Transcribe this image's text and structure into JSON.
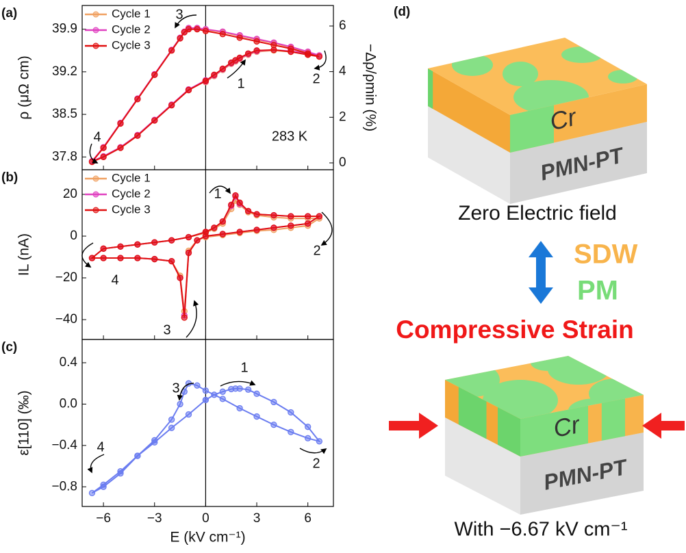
{
  "chart_data": [
    {
      "type": "line",
      "panel_label": "(a)",
      "ylabel": "ρ (μΩ cm)",
      "y2label": "−Δρ/ρmin (%)",
      "annotations": [
        "3",
        "1",
        "2",
        "4",
        "283 K"
      ],
      "legend": "upper left",
      "x": [
        0,
        0.5,
        1,
        1.5,
        1.75,
        2,
        2.5,
        3,
        4,
        5,
        6,
        6.67,
        6,
        5,
        4,
        3,
        2,
        1,
        0,
        -0.5,
        -1,
        -1.25,
        -1.5,
        -2,
        -3,
        -4,
        -5,
        -6,
        -6.67,
        -6,
        -5,
        -4,
        -3,
        -2,
        -1,
        0
      ],
      "series": [
        {
          "name": "Cycle 1",
          "color": "#f0a060",
          "values": [
            39.03,
            39.13,
            39.23,
            39.33,
            39.37,
            39.41,
            39.48,
            39.53,
            39.55,
            39.53,
            39.49,
            39.46,
            39.52,
            39.6,
            39.67,
            39.73,
            39.79,
            39.85,
            39.89,
            39.91,
            39.91,
            39.85,
            39.75,
            39.55,
            39.15,
            38.75,
            38.35,
            37.95,
            37.72,
            37.8,
            37.95,
            38.15,
            38.4,
            38.65,
            38.9,
            39.05
          ]
        },
        {
          "name": "Cycle 2",
          "color": "#e040c0",
          "values": [
            39.04,
            39.14,
            39.24,
            39.34,
            39.38,
            39.42,
            39.49,
            39.54,
            39.56,
            39.54,
            39.5,
            39.47,
            39.53,
            39.61,
            39.68,
            39.74,
            39.8,
            39.86,
            39.9,
            39.92,
            39.92,
            39.86,
            39.76,
            39.56,
            39.16,
            38.76,
            38.36,
            37.96,
            37.73,
            37.81,
            37.96,
            38.16,
            38.41,
            38.66,
            38.91,
            39.06
          ]
        },
        {
          "name": "Cycle 3",
          "color": "#e01010",
          "values": [
            39.05,
            39.15,
            39.25,
            39.35,
            39.39,
            39.43,
            39.5,
            39.55,
            39.56,
            39.53,
            39.48,
            39.45,
            39.5,
            39.58,
            39.64,
            39.7,
            39.76,
            39.82,
            39.87,
            39.9,
            39.9,
            39.85,
            39.75,
            39.55,
            39.15,
            38.75,
            38.35,
            37.95,
            37.72,
            37.8,
            37.95,
            38.15,
            38.4,
            38.65,
            38.9,
            39.05
          ]
        }
      ],
      "xlim": [
        -7.25,
        7.5
      ],
      "xticks": [
        -6,
        -3,
        0,
        3,
        6
      ],
      "vline": 0,
      "ylim": [
        37.59,
        40.29
      ],
      "yticks": [
        37.8,
        38.5,
        39.2,
        39.9
      ],
      "y2lim": [
        -0.3,
        6.9
      ],
      "y2ticks": [
        0,
        2,
        4,
        6
      ]
    },
    {
      "type": "line",
      "panel_label": "(b)",
      "ylabel": "IL (nA)",
      "annotations": [
        "1",
        "2",
        "3",
        "4"
      ],
      "legend": "upper left",
      "x": [
        0,
        0.5,
        1,
        1.5,
        1.75,
        2,
        2.5,
        3,
        4,
        5,
        6,
        6.67,
        6,
        5,
        4,
        3,
        2,
        1,
        0,
        -0.5,
        -1,
        -1.25,
        -1.5,
        -2,
        -3,
        -4,
        -5,
        -6,
        -6.67,
        -6,
        -5,
        -4,
        -3,
        -2,
        -1,
        0
      ],
      "series": [
        {
          "name": "Cycle 1",
          "color": "#f0a060",
          "values": [
            1.5,
            3.5,
            6,
            13,
            17,
            15,
            11.5,
            10,
            9,
            8.5,
            8.5,
            8.5,
            5,
            4,
            3,
            2.5,
            1.5,
            0.5,
            -0.5,
            -2,
            -7,
            -36,
            -19,
            -12,
            -11,
            -10.5,
            -10.5,
            -10.5,
            -10.5,
            -6,
            -5,
            -4,
            -3,
            -2,
            -0.5,
            1.5
          ]
        },
        {
          "name": "Cycle 2",
          "color": "#e040c0",
          "values": [
            2,
            4,
            7,
            14.5,
            19,
            15.5,
            12,
            10.5,
            10,
            9.5,
            9.5,
            9.5,
            6,
            5,
            4,
            3,
            2,
            1,
            0,
            -2,
            -8,
            -38,
            -20,
            -12,
            -11,
            -10.5,
            -10.5,
            -10.5,
            -10.5,
            -6,
            -5,
            -4,
            -3,
            -2,
            -0.5,
            2
          ]
        },
        {
          "name": "Cycle 3",
          "color": "#e01010",
          "values": [
            2,
            4,
            7,
            15,
            19.5,
            16,
            12,
            10.5,
            10,
            9.5,
            9.5,
            9.5,
            6,
            5,
            4,
            3,
            2,
            1,
            0,
            -2,
            -8,
            -39,
            -20,
            -12,
            -11,
            -10.5,
            -10.5,
            -10.5,
            -10.5,
            -6,
            -5,
            -4,
            -3,
            -2,
            -0.5,
            2
          ]
        }
      ],
      "xlim": [
        -7.25,
        7.5
      ],
      "xticks": [
        -6,
        -3,
        0,
        3,
        6
      ],
      "vline": 0,
      "ylim": [
        -49.5,
        31.8
      ],
      "yticks": [
        {
          "value": -40,
          "label": "−40"
        },
        {
          "value": -20,
          "label": "−20"
        },
        0,
        20
      ]
    },
    {
      "type": "line",
      "panel_label": "(c)",
      "ylabel": "ε[110] (‰)",
      "xlabel": "E (kV cm⁻¹)",
      "annotations": [
        "1",
        "2",
        "3",
        "4"
      ],
      "x": [
        0,
        0.5,
        1,
        1.5,
        1.75,
        2,
        2.5,
        3,
        4,
        5,
        6,
        6.67,
        6,
        5,
        4,
        3,
        2,
        1,
        0,
        -0.5,
        -1,
        -1.25,
        -1.5,
        -2,
        -3,
        -4,
        -5,
        -6,
        -6.67,
        -6,
        -5,
        -4,
        -3,
        -2,
        -1,
        0
      ],
      "series": [
        {
          "color": "#6a7cf0",
          "values": [
            0.04,
            0.09,
            0.12,
            0.145,
            0.15,
            0.15,
            0.14,
            0.1,
            0.02,
            -0.08,
            -0.22,
            -0.36,
            -0.33,
            -0.27,
            -0.2,
            -0.12,
            -0.04,
            0.05,
            0.13,
            0.18,
            0.2,
            0.12,
            0,
            -0.15,
            -0.35,
            -0.5,
            -0.65,
            -0.78,
            -0.86,
            -0.8,
            -0.67,
            -0.5,
            -0.37,
            -0.23,
            -0.1,
            0.04
          ]
        }
      ],
      "xlim": [
        -7.25,
        7.5
      ],
      "xticks": [
        {
          "value": -6,
          "label": "−6"
        },
        {
          "value": -3,
          "label": "−3"
        },
        0,
        3,
        6
      ],
      "vline": 0,
      "ylim": [
        -0.99,
        0.625
      ],
      "yticks": [
        {
          "value": -0.8,
          "label": "−0.8"
        },
        {
          "value": -0.4,
          "label": "−0.4"
        },
        {
          "value": 0,
          "label": "0.0"
        },
        0.4
      ]
    }
  ],
  "diagram": {
    "panel_label": "(d)",
    "top_block": {
      "layer": "Cr",
      "substrate": "PMN-PT",
      "caption": "Zero Electric field"
    },
    "phases": [
      "SDW",
      "PM"
    ],
    "strain": "Compressive Strain",
    "bottom_block": {
      "layer": "Cr",
      "substrate": "PMN-PT",
      "caption": "With −6.67 kV cm⁻¹"
    }
  }
}
